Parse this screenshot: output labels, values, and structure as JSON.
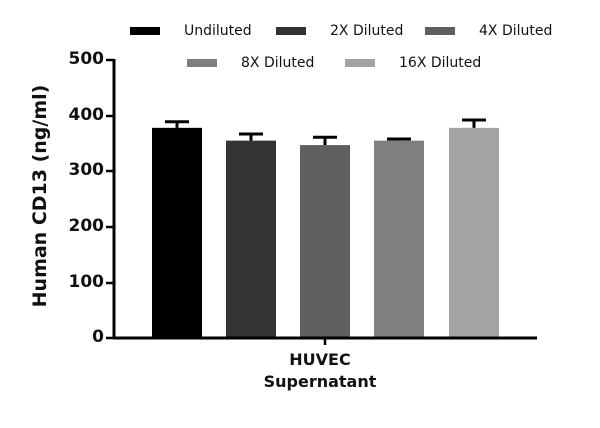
{
  "chart_data": {
    "type": "bar",
    "title": "",
    "xlabel": "HUVEC Supernatant",
    "xlabel_lines": [
      "HUVEC",
      "Supernatant"
    ],
    "ylabel": "Human CD13 (ng/ml)",
    "ylim": [
      0,
      500
    ],
    "yticks": [
      0,
      100,
      200,
      300,
      400,
      500
    ],
    "grid": false,
    "legend_position": "top",
    "categories": [
      "HUVEC Supernatant"
    ],
    "series": [
      {
        "name": "Undiluted",
        "values": [
          378
        ],
        "error": [
          11
        ],
        "color": "#000000"
      },
      {
        "name": "2X Diluted",
        "values": [
          355
        ],
        "error": [
          12
        ],
        "color": "#333333"
      },
      {
        "name": "4X Diluted",
        "values": [
          347
        ],
        "error": [
          14
        ],
        "color": "#5f5f5f"
      },
      {
        "name": "8X Diluted",
        "values": [
          355
        ],
        "error": [
          3
        ],
        "color": "#7f7f7f"
      },
      {
        "name": "16X Diluted",
        "values": [
          378
        ],
        "error": [
          14
        ],
        "color": "#a3a3a5"
      }
    ]
  },
  "legend": {
    "items": [
      "Undiluted",
      "2X Diluted",
      "4X Diluted",
      "8X Diluted",
      "16X Diluted"
    ]
  },
  "axis": {
    "ylabel": "Human CD13 (ng/ml)",
    "xlabel_line1": "HUVEC",
    "xlabel_line2": "Supernatant",
    "ticks": [
      "0",
      "100",
      "200",
      "300",
      "400",
      "500"
    ]
  }
}
